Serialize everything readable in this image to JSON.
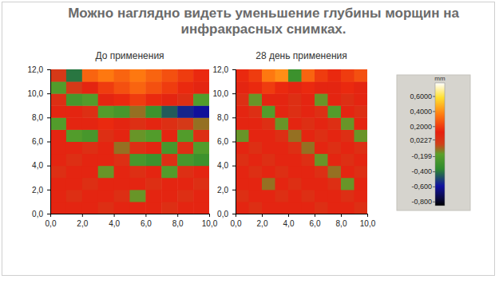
{
  "title": [
    "Можно наглядно видеть уменьшение глубины морщин на",
    "инфракрасных снимках."
  ],
  "chart_data": [
    {
      "type": "heatmap",
      "title": "До применения",
      "x": [
        0.5,
        1.5,
        2.5,
        3.5,
        4.5,
        5.5,
        6.5,
        7.5,
        8.5,
        9.5
      ],
      "y": [
        0.5,
        1.5,
        2.5,
        3.5,
        4.5,
        5.5,
        6.5,
        7.5,
        8.5,
        9.5,
        10.5,
        11.5
      ],
      "cells": [
        [
          0.1,
          0.1,
          0.1,
          0.05,
          0.1,
          0.1,
          0.1,
          0.05,
          0.1,
          0.1
        ],
        [
          0.1,
          0.05,
          0.1,
          0.1,
          0.05,
          -0.15,
          0.1,
          0.1,
          0.05,
          0.1
        ],
        [
          0.1,
          0.1,
          0.05,
          0.1,
          0.1,
          0.1,
          0.05,
          0.1,
          0.1,
          0.05
        ],
        [
          0.05,
          0.1,
          0.1,
          -0.15,
          0.1,
          0.05,
          0.1,
          -0.2,
          0.05,
          0.1
        ],
        [
          0.1,
          0.05,
          0.1,
          0.1,
          0.05,
          -0.25,
          -0.3,
          0.05,
          -0.25,
          -0.3
        ],
        [
          0.1,
          0.1,
          0.05,
          0.1,
          -0.1,
          0.05,
          0.1,
          -0.25,
          0.05,
          -0.2
        ],
        [
          0.1,
          -0.2,
          -0.25,
          0.05,
          0.1,
          -0.15,
          -0.2,
          0.1,
          -0.2,
          0.05
        ],
        [
          -0.2,
          0.1,
          0.1,
          0.15,
          0.1,
          0.05,
          0.1,
          0.05,
          0.0,
          -0.1
        ],
        [
          0.1,
          0.1,
          0.05,
          -0.2,
          -0.25,
          -0.1,
          -0.3,
          -0.45,
          -0.55,
          -0.6
        ],
        [
          0.05,
          -0.25,
          -0.2,
          0.1,
          0.15,
          0.2,
          0.15,
          0.1,
          0.05,
          -0.2
        ],
        [
          -0.2,
          0.0,
          0.1,
          0.2,
          0.25,
          0.3,
          0.25,
          0.2,
          0.15,
          0.1
        ],
        [
          0.0,
          -0.4,
          0.3,
          0.35,
          0.3,
          0.35,
          0.3,
          0.25,
          0.2,
          0.15
        ]
      ],
      "xlim": [
        0,
        10
      ],
      "xticks": [
        {
          "value": 0,
          "label": "0,0"
        },
        {
          "value": 2,
          "label": "2,0"
        },
        {
          "value": 4,
          "label": "4,0"
        },
        {
          "value": 6,
          "label": "6,0"
        },
        {
          "value": 8,
          "label": "8,0"
        },
        {
          "value": 10,
          "label": "10,0"
        }
      ],
      "ylim": [
        0,
        12
      ],
      "yticks": [
        {
          "value": 0,
          "label": "0,0"
        },
        {
          "value": 2,
          "label": "2,0"
        },
        {
          "value": 4,
          "label": "4,0"
        },
        {
          "value": 6,
          "label": "6,0"
        },
        {
          "value": 8,
          "label": "8,0"
        },
        {
          "value": 10,
          "label": "10,0"
        },
        {
          "value": 12,
          "label": "12,0"
        }
      ]
    },
    {
      "type": "heatmap",
      "title": "28 день применения",
      "x": [
        0.5,
        1.5,
        2.5,
        3.5,
        4.5,
        5.5,
        6.5,
        7.5,
        8.5,
        9.5
      ],
      "y": [
        0.5,
        1.5,
        2.5,
        3.5,
        4.5,
        5.5,
        6.5,
        7.5,
        8.5,
        9.5,
        10.5,
        11.5
      ],
      "cells": [
        [
          0.1,
          0.05,
          0.1,
          0.1,
          0.1,
          0.1,
          0.05,
          0.1,
          0.1,
          0.05
        ],
        [
          0.05,
          0.1,
          0.1,
          0.05,
          0.1,
          0.05,
          0.1,
          0.1,
          0.05,
          0.1
        ],
        [
          0.1,
          0.1,
          -0.1,
          0.1,
          0.05,
          0.1,
          0.1,
          0.05,
          -0.15,
          0.1
        ],
        [
          0.1,
          0.05,
          0.1,
          0.05,
          0.1,
          0.1,
          0.05,
          -0.1,
          0.1,
          0.05
        ],
        [
          0.05,
          0.1,
          0.05,
          0.1,
          0.1,
          0.05,
          -0.15,
          0.1,
          0.05,
          0.1
        ],
        [
          0.1,
          0.05,
          0.1,
          0.1,
          0.05,
          -0.1,
          0.1,
          0.05,
          0.1,
          0.05
        ],
        [
          -0.15,
          0.1,
          0.1,
          0.05,
          -0.1,
          0.1,
          0.05,
          0.1,
          0.05,
          -0.15
        ],
        [
          0.1,
          0.1,
          0.05,
          -0.15,
          0.1,
          0.05,
          0.1,
          0.05,
          -0.15,
          0.1
        ],
        [
          0.1,
          0.05,
          -0.2,
          0.1,
          0.05,
          0.1,
          0.05,
          -0.2,
          0.1,
          0.05
        ],
        [
          0.05,
          -0.15,
          0.1,
          0.1,
          0.05,
          0.1,
          -0.15,
          0.1,
          0.05,
          0.1
        ],
        [
          0.1,
          0.15,
          0.2,
          0.15,
          0.1,
          0.15,
          0.1,
          0.1,
          0.15,
          0.1
        ],
        [
          0.15,
          0.2,
          0.35,
          0.4,
          -0.3,
          0.3,
          0.2,
          0.15,
          0.2,
          0.25
        ]
      ],
      "xlim": [
        0,
        10
      ],
      "xticks": [
        {
          "value": 0,
          "label": "0,0"
        },
        {
          "value": 2,
          "label": "2,0"
        },
        {
          "value": 4,
          "label": "4,0"
        },
        {
          "value": 6,
          "label": "6,0"
        },
        {
          "value": 8,
          "label": "8,0"
        },
        {
          "value": 10,
          "label": "10,0"
        }
      ],
      "ylim": [
        0,
        12
      ],
      "yticks": [
        {
          "value": 0,
          "label": "0,0"
        },
        {
          "value": 2,
          "label": "2,0"
        },
        {
          "value": 4,
          "label": "4,0"
        },
        {
          "value": 6,
          "label": "6,0"
        },
        {
          "value": 8,
          "label": "8,0"
        },
        {
          "value": 10,
          "label": "10,0"
        },
        {
          "value": 12,
          "label": "12,0"
        }
      ]
    }
  ],
  "colorbar": {
    "unit": "mm",
    "range": [
      -0.85,
      0.78
    ],
    "ticks": [
      {
        "value": 0.6,
        "label": "0,6000"
      },
      {
        "value": 0.4,
        "label": "0,4000"
      },
      {
        "value": 0.2,
        "label": "0,2000"
      },
      {
        "value": 0.0227,
        "label": "0,0227"
      },
      {
        "value": -0.199,
        "label": "-0,199"
      },
      {
        "value": -0.4,
        "label": "-0,400"
      },
      {
        "value": -0.6,
        "label": "-0,600"
      },
      {
        "value": -0.8,
        "label": "-0,800"
      }
    ]
  }
}
